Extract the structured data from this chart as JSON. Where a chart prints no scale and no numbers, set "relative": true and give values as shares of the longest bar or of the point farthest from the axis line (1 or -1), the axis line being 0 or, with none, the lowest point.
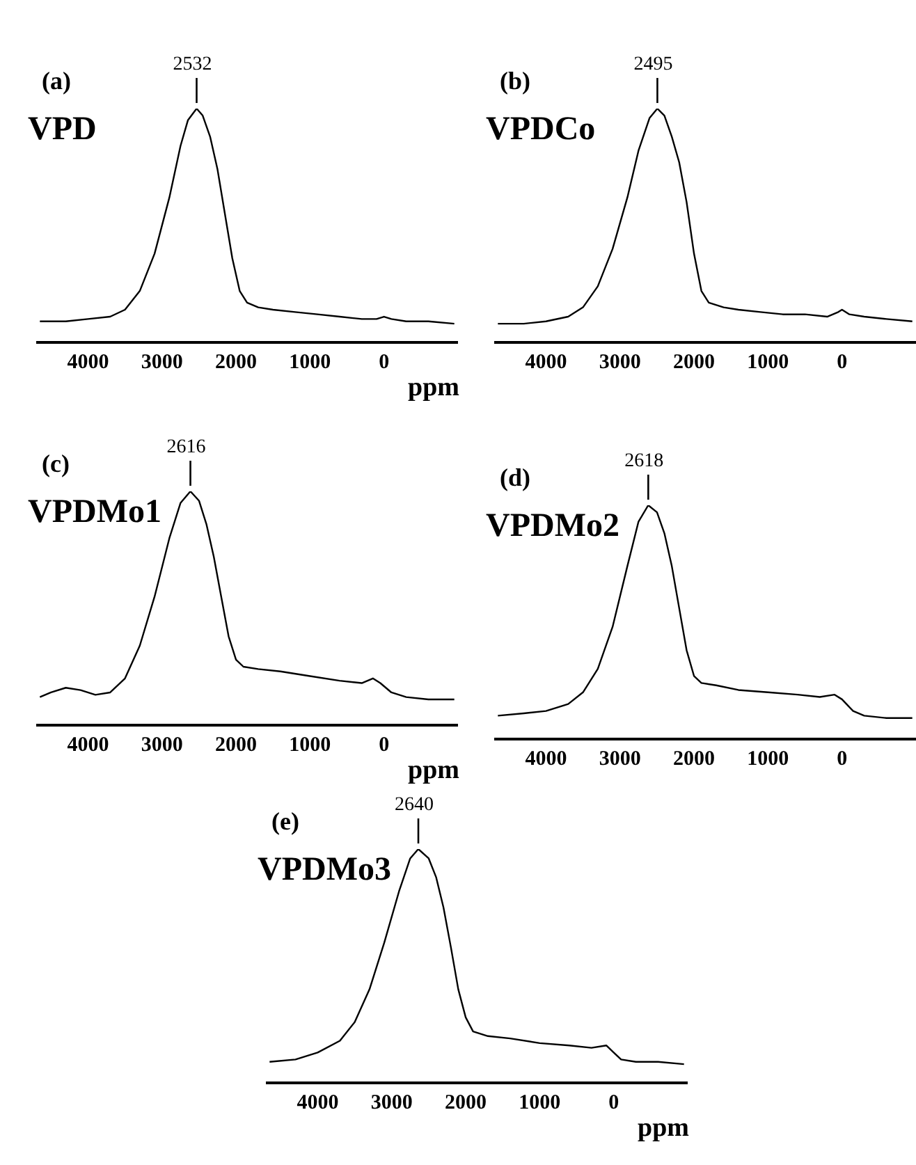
{
  "chart_data": [
    {
      "type": "line",
      "title": "(a)",
      "subtitle": "VPD",
      "xlabel": "ppm",
      "relative": true,
      "xlim": [
        4700,
        -1000
      ],
      "xticks": [
        4000,
        3000,
        2000,
        1000,
        0
      ],
      "annotations": [
        {
          "text": "2532",
          "x": 2532,
          "y": 1
        }
      ],
      "x": [
        4650,
        4300,
        4000,
        3700,
        3500,
        3300,
        3100,
        2900,
        2750,
        2650,
        2532,
        2450,
        2350,
        2250,
        2150,
        2050,
        1950,
        1850,
        1700,
        1500,
        1200,
        900,
        600,
        300,
        100,
        0,
        -100,
        -300,
        -600,
        -950
      ],
      "series": [
        {
          "color": "#000000",
          "values": [
            0.09,
            0.09,
            0.1,
            0.11,
            0.14,
            0.22,
            0.38,
            0.62,
            0.84,
            0.95,
            1,
            0.97,
            0.88,
            0.74,
            0.55,
            0.36,
            0.22,
            0.17,
            0.15,
            0.14,
            0.13,
            0.12,
            0.11,
            0.1,
            0.1,
            0.11,
            0.1,
            0.09,
            0.09,
            0.08
          ]
        }
      ]
    },
    {
      "type": "line",
      "title": "(b)",
      "subtitle": "VPDCo",
      "relative": true,
      "xlim": [
        4700,
        -1000
      ],
      "xticks": [
        4000,
        3000,
        2000,
        1000,
        0
      ],
      "annotations": [
        {
          "text": "2495",
          "x": 2495,
          "y": 1
        }
      ],
      "x": [
        4650,
        4300,
        4000,
        3700,
        3500,
        3300,
        3100,
        2900,
        2750,
        2600,
        2495,
        2400,
        2300,
        2200,
        2100,
        2000,
        1900,
        1800,
        1600,
        1400,
        1100,
        800,
        500,
        200,
        50,
        0,
        -100,
        -300,
        -600,
        -950
      ],
      "series": [
        {
          "color": "#000000",
          "values": [
            0.08,
            0.08,
            0.09,
            0.11,
            0.15,
            0.24,
            0.4,
            0.62,
            0.82,
            0.96,
            1,
            0.97,
            0.88,
            0.77,
            0.6,
            0.38,
            0.22,
            0.17,
            0.15,
            0.14,
            0.13,
            0.12,
            0.12,
            0.11,
            0.13,
            0.14,
            0.12,
            0.11,
            0.1,
            0.09
          ]
        }
      ]
    },
    {
      "type": "line",
      "title": "(c)",
      "subtitle": "VPDMo1",
      "xlabel": "ppm",
      "relative": true,
      "xlim": [
        4700,
        -1000
      ],
      "xticks": [
        4000,
        3000,
        2000,
        1000,
        0
      ],
      "annotations": [
        {
          "text": "2616",
          "x": 2616,
          "y": 1
        }
      ],
      "x": [
        4650,
        4500,
        4300,
        4100,
        3900,
        3700,
        3500,
        3300,
        3100,
        2900,
        2750,
        2616,
        2500,
        2400,
        2300,
        2200,
        2100,
        2000,
        1900,
        1700,
        1400,
        1000,
        600,
        300,
        150,
        50,
        -100,
        -300,
        -600,
        -950
      ],
      "series": [
        {
          "color": "#000000",
          "values": [
            0.12,
            0.14,
            0.16,
            0.15,
            0.13,
            0.14,
            0.2,
            0.34,
            0.55,
            0.8,
            0.95,
            1,
            0.96,
            0.86,
            0.72,
            0.55,
            0.38,
            0.28,
            0.25,
            0.24,
            0.23,
            0.21,
            0.19,
            0.18,
            0.2,
            0.18,
            0.14,
            0.12,
            0.11,
            0.11
          ]
        }
      ]
    },
    {
      "type": "line",
      "title": "(d)",
      "subtitle": "VPDMo2",
      "relative": true,
      "xlim": [
        4700,
        -1000
      ],
      "xticks": [
        4000,
        3000,
        2000,
        1000,
        0
      ],
      "annotations": [
        {
          "text": "2618",
          "x": 2618,
          "y": 1
        }
      ],
      "x": [
        4650,
        4300,
        4000,
        3700,
        3500,
        3300,
        3100,
        2900,
        2750,
        2618,
        2500,
        2400,
        2300,
        2200,
        2100,
        2000,
        1900,
        1700,
        1400,
        1000,
        600,
        300,
        100,
        0,
        -150,
        -300,
        -600,
        -950
      ],
      "series": [
        {
          "color": "#000000",
          "values": [
            0.1,
            0.11,
            0.12,
            0.15,
            0.2,
            0.3,
            0.48,
            0.74,
            0.93,
            1,
            0.97,
            0.88,
            0.74,
            0.56,
            0.38,
            0.27,
            0.24,
            0.23,
            0.21,
            0.2,
            0.19,
            0.18,
            0.19,
            0.17,
            0.12,
            0.1,
            0.09,
            0.09
          ]
        }
      ]
    },
    {
      "type": "line",
      "title": "(e)",
      "subtitle": "VPDMo3",
      "xlabel": "ppm",
      "relative": true,
      "xlim": [
        4700,
        -1000
      ],
      "xticks": [
        4000,
        3000,
        2000,
        1000,
        0
      ],
      "annotations": [
        {
          "text": "2640",
          "x": 2640,
          "y": 1
        }
      ],
      "x": [
        4650,
        4300,
        4000,
        3700,
        3500,
        3300,
        3100,
        2900,
        2750,
        2640,
        2500,
        2400,
        2300,
        2200,
        2100,
        2000,
        1900,
        1700,
        1400,
        1000,
        600,
        300,
        100,
        0,
        -100,
        -300,
        -600,
        -950
      ],
      "series": [
        {
          "color": "#000000",
          "values": [
            0.09,
            0.1,
            0.13,
            0.18,
            0.26,
            0.4,
            0.6,
            0.82,
            0.96,
            1,
            0.96,
            0.88,
            0.75,
            0.58,
            0.4,
            0.28,
            0.22,
            0.2,
            0.19,
            0.17,
            0.16,
            0.15,
            0.16,
            0.13,
            0.1,
            0.09,
            0.09,
            0.08
          ]
        }
      ]
    }
  ]
}
